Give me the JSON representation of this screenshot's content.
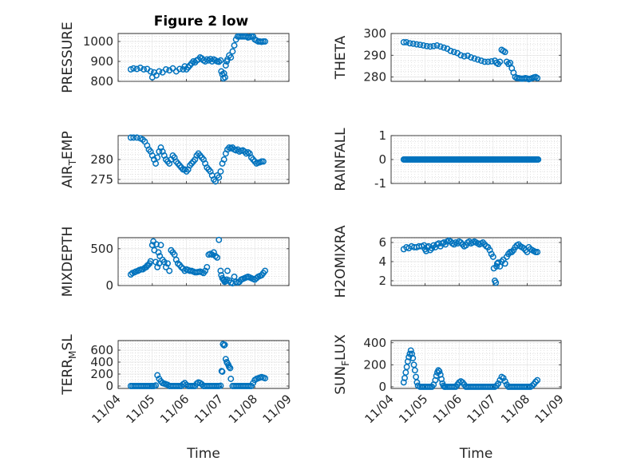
{
  "figure": {
    "title": "Figure 2 low"
  },
  "chart_data": [
    {
      "type": "scatter",
      "title": "Figure 2 low",
      "ylabel": "PRESSURE",
      "xlabel": "",
      "ylim": [
        800,
        1040
      ],
      "yticks": [
        800,
        900,
        1000
      ],
      "ytick_labels": [
        "800",
        "900",
        "1000"
      ],
      "xlim": [
        4,
        9
      ],
      "grid": true,
      "x": [
        4.37,
        4.45,
        4.55,
        4.65,
        4.75,
        4.85,
        4.95,
        5.0,
        5.05,
        5.12,
        5.2,
        5.3,
        5.4,
        5.5,
        5.6,
        5.7,
        5.8,
        5.9,
        5.95,
        6.0,
        6.05,
        6.1,
        6.15,
        6.2,
        6.25,
        6.3,
        6.35,
        6.4,
        6.45,
        6.5,
        6.55,
        6.6,
        6.65,
        6.7,
        6.75,
        6.8,
        6.85,
        6.9,
        6.95,
        7.0,
        7.02,
        7.05,
        7.08,
        7.1,
        7.13,
        7.15,
        7.18,
        7.2,
        7.25,
        7.3,
        7.35,
        7.4,
        7.45,
        7.5,
        7.55,
        7.6,
        7.65,
        7.7,
        7.75,
        7.8,
        7.85,
        7.9,
        7.95,
        8.0,
        8.05,
        8.1,
        8.15,
        8.2,
        8.25,
        8.3
      ],
      "y": [
        860,
        865,
        862,
        868,
        860,
        862,
        850,
        820,
        845,
        830,
        850,
        845,
        860,
        855,
        865,
        850,
        862,
        860,
        875,
        860,
        870,
        880,
        890,
        900,
        895,
        905,
        910,
        920,
        915,
        905,
        900,
        910,
        905,
        912,
        900,
        910,
        905,
        900,
        898,
        905,
        850,
        835,
        815,
        840,
        820,
        880,
        900,
        910,
        930,
        920,
        950,
        980,
        1010,
        1025,
        1025,
        1025,
        1025,
        1025,
        1025,
        1020,
        1022,
        1025,
        1025,
        1010,
        1005,
        1000,
        1000,
        998,
        1000,
        1000
      ]
    },
    {
      "type": "scatter",
      "ylabel": "THETA",
      "xlabel": "",
      "ylim": [
        278,
        300
      ],
      "yticks": [
        280,
        290,
        300
      ],
      "ytick_labels": [
        "280",
        "290",
        "300"
      ],
      "xlim": [
        4,
        9
      ],
      "grid": true,
      "x": [
        4.37,
        4.45,
        4.55,
        4.65,
        4.75,
        4.85,
        4.95,
        5.05,
        5.15,
        5.25,
        5.35,
        5.45,
        5.55,
        5.65,
        5.75,
        5.85,
        5.95,
        6.05,
        6.15,
        6.25,
        6.35,
        6.45,
        6.55,
        6.65,
        6.75,
        6.85,
        6.95,
        7.05,
        7.1,
        7.15,
        7.2,
        7.25,
        7.3,
        7.35,
        7.4,
        7.45,
        7.5,
        7.55,
        7.6,
        7.65,
        7.7,
        7.75,
        7.8,
        7.85,
        7.9,
        7.95,
        8.0,
        8.05,
        8.1,
        8.15,
        8.2,
        8.25,
        8.3
      ],
      "y": [
        296,
        296,
        295.5,
        295.3,
        295,
        294.8,
        294.5,
        294.2,
        294,
        294.2,
        294.5,
        294,
        293.5,
        293,
        292,
        291.5,
        291,
        290,
        289.5,
        289.8,
        289,
        288.5,
        288,
        287.5,
        287,
        287,
        287.2,
        287.5,
        286.5,
        286,
        287,
        292.5,
        292,
        291.5,
        287,
        286,
        286.5,
        284,
        282,
        280,
        279.5,
        279.5,
        279.3,
        279.2,
        279.3,
        279.5,
        279.3,
        279,
        279.2,
        279.5,
        279.8,
        280,
        279.5
      ]
    },
    {
      "type": "scatter",
      "ylabel": "AIR_TEMP",
      "xlabel": "",
      "ylim": [
        274,
        286
      ],
      "yticks": [
        275,
        280
      ],
      "ytick_labels": [
        "275",
        "280"
      ],
      "xlim": [
        4,
        9
      ],
      "grid": true,
      "x": [
        4.37,
        4.45,
        4.55,
        4.65,
        4.72,
        4.78,
        4.85,
        4.9,
        4.95,
        5.0,
        5.05,
        5.1,
        5.15,
        5.2,
        5.25,
        5.3,
        5.35,
        5.4,
        5.45,
        5.5,
        5.55,
        5.6,
        5.65,
        5.7,
        5.75,
        5.8,
        5.85,
        5.9,
        5.95,
        6.0,
        6.05,
        6.1,
        6.15,
        6.2,
        6.25,
        6.3,
        6.35,
        6.4,
        6.45,
        6.5,
        6.55,
        6.6,
        6.65,
        6.7,
        6.75,
        6.8,
        6.85,
        6.9,
        6.95,
        7.0,
        7.05,
        7.1,
        7.15,
        7.2,
        7.25,
        7.3,
        7.35,
        7.4,
        7.45,
        7.5,
        7.55,
        7.6,
        7.65,
        7.7,
        7.75,
        7.8,
        7.85,
        7.9,
        7.95,
        8.0,
        8.05,
        8.1,
        8.15,
        8.2,
        8.25
      ],
      "y": [
        285.5,
        285.5,
        285.5,
        285.3,
        285,
        284.5,
        283.5,
        282.5,
        282,
        281,
        280,
        279,
        280.5,
        282,
        283,
        282,
        281,
        280,
        279.5,
        279,
        280,
        281,
        280.5,
        279.5,
        279,
        278.5,
        278,
        277.5,
        277.5,
        277,
        277.5,
        278.5,
        279,
        279.5,
        280,
        281,
        281.5,
        281,
        280.5,
        280,
        279,
        278,
        277.5,
        277,
        276,
        275,
        274.5,
        276,
        275.5,
        277,
        279,
        280,
        281.5,
        282.5,
        283,
        282.8,
        283,
        282.5,
        282.3,
        282.5,
        282,
        282.2,
        282.3,
        282,
        281.5,
        281.8,
        281.5,
        280.5,
        280,
        279.5,
        279,
        279.2,
        279.3,
        279.5,
        279.5
      ]
    },
    {
      "type": "scatter",
      "ylabel": "RAINFALL",
      "xlabel": "",
      "ylim": [
        -1,
        1
      ],
      "yticks": [
        -1,
        0,
        1
      ],
      "ytick_labels": [
        "-1",
        "0",
        "1"
      ],
      "xlim": [
        4,
        9
      ],
      "grid": true,
      "x_start": 4.37,
      "x_end": 8.33,
      "x_step": 0.035,
      "constant_value": 0
    },
    {
      "type": "scatter",
      "ylabel": "MIXDEPTH",
      "xlabel": "",
      "ylim": [
        0,
        650
      ],
      "yticks": [
        0,
        500
      ],
      "ytick_labels": [
        "0",
        "500"
      ],
      "xlim": [
        4,
        9
      ],
      "grid": true,
      "x": [
        4.37,
        4.42,
        4.48,
        4.52,
        4.58,
        4.62,
        4.68,
        4.72,
        4.78,
        4.82,
        4.85,
        4.88,
        4.92,
        4.95,
        5.0,
        5.03,
        5.06,
        5.1,
        5.12,
        5.15,
        5.18,
        5.2,
        5.22,
        5.25,
        5.3,
        5.35,
        5.4,
        5.45,
        5.5,
        5.55,
        5.6,
        5.65,
        5.7,
        5.75,
        5.8,
        5.85,
        5.9,
        5.95,
        6.0,
        6.05,
        6.1,
        6.15,
        6.2,
        6.25,
        6.3,
        6.35,
        6.4,
        6.45,
        6.5,
        6.55,
        6.6,
        6.65,
        6.7,
        6.75,
        6.8,
        6.85,
        6.9,
        6.95,
        7.0,
        7.02,
        7.05,
        7.08,
        7.1,
        7.12,
        7.15,
        7.18,
        7.2,
        7.25,
        7.3,
        7.35,
        7.4,
        7.45,
        7.5,
        7.55,
        7.6,
        7.65,
        7.7,
        7.75,
        7.8,
        7.85,
        7.9,
        7.95,
        8.0,
        8.05,
        8.1,
        8.15,
        8.2,
        8.25,
        8.3
      ],
      "y": [
        150,
        170,
        180,
        190,
        200,
        210,
        220,
        220,
        240,
        250,
        270,
        280,
        300,
        330,
        550,
        600,
        480,
        320,
        560,
        250,
        450,
        300,
        400,
        550,
        350,
        320,
        250,
        300,
        200,
        480,
        450,
        420,
        350,
        300,
        280,
        250,
        230,
        200,
        220,
        210,
        200,
        200,
        190,
        180,
        180,
        185,
        190,
        180,
        170,
        200,
        250,
        420,
        430,
        420,
        450,
        400,
        380,
        620,
        200,
        140,
        100,
        80,
        70,
        50,
        60,
        80,
        200,
        70,
        40,
        30,
        120,
        50,
        40,
        50,
        80,
        90,
        100,
        110,
        120,
        110,
        100,
        90,
        80,
        100,
        120,
        130,
        140,
        170,
        200
      ]
    },
    {
      "type": "scatter",
      "ylabel": "H2OMIXRA",
      "xlabel": "",
      "ylim": [
        1.5,
        6.5
      ],
      "yticks": [
        2,
        4,
        6
      ],
      "ytick_labels": [
        "2",
        "4",
        "6"
      ],
      "xlim": [
        4,
        9
      ],
      "grid": true,
      "x": [
        4.37,
        4.45,
        4.52,
        4.6,
        4.68,
        4.75,
        4.82,
        4.9,
        4.97,
        5.0,
        5.03,
        5.06,
        5.1,
        5.15,
        5.2,
        5.25,
        5.3,
        5.35,
        5.4,
        5.45,
        5.5,
        5.55,
        5.6,
        5.65,
        5.7,
        5.75,
        5.8,
        5.85,
        5.9,
        5.95,
        6.0,
        6.05,
        6.1,
        6.15,
        6.2,
        6.25,
        6.3,
        6.35,
        6.4,
        6.45,
        6.5,
        6.55,
        6.6,
        6.65,
        6.7,
        6.75,
        6.8,
        6.85,
        6.9,
        6.95,
        7.0,
        7.02,
        7.05,
        7.08,
        7.1,
        7.12,
        7.15,
        7.2,
        7.25,
        7.3,
        7.35,
        7.4,
        7.45,
        7.5,
        7.55,
        7.6,
        7.65,
        7.7,
        7.75,
        7.8,
        7.85,
        7.9,
        7.95,
        8.0,
        8.05,
        8.1,
        8.15,
        8.2,
        8.25,
        8.3
      ],
      "y": [
        5.3,
        5.5,
        5.4,
        5.6,
        5.5,
        5.5,
        5.6,
        5.6,
        5.7,
        5.3,
        5.1,
        5.5,
        5.6,
        5.2,
        5.4,
        5.7,
        5.5,
        5.8,
        5.9,
        5.6,
        5.9,
        6.0,
        5.8,
        6.1,
        6.2,
        6.1,
        5.9,
        5.8,
        6.0,
        5.9,
        6.1,
        6.0,
        5.8,
        5.6,
        5.7,
        6.0,
        6.1,
        5.9,
        6.0,
        6.1,
        6.0,
        5.9,
        5.8,
        5.9,
        6.0,
        5.8,
        5.6,
        5.5,
        5.2,
        4.8,
        4.5,
        3.3,
        2.0,
        1.8,
        3.5,
        3.8,
        3.9,
        3.5,
        4.0,
        4.2,
        3.8,
        4.5,
        4.8,
        5.0,
        5.0,
        5.2,
        5.5,
        5.7,
        5.8,
        5.6,
        5.5,
        5.4,
        5.2,
        5.0,
        5.5,
        5.3,
        5.2,
        5.1,
        5.0,
        5.0
      ]
    },
    {
      "type": "scatter",
      "ylabel": "TERR_MSL",
      "xlabel": "Time",
      "ylim": [
        -40,
        760
      ],
      "yticks": [
        0,
        200,
        400,
        600
      ],
      "ytick_labels": [
        "0",
        "200",
        "400",
        "600"
      ],
      "xlim": [
        4,
        9
      ],
      "xticks": [
        4,
        5,
        6,
        7,
        8,
        9
      ],
      "xtick_labels": [
        "11/04",
        "11/05",
        "11/06",
        "11/07",
        "11/08",
        "11/09"
      ],
      "grid": true,
      "x": [
        4.37,
        4.42,
        4.47,
        4.52,
        4.57,
        4.62,
        4.67,
        4.72,
        4.77,
        4.82,
        4.87,
        4.92,
        4.97,
        5.0,
        5.05,
        5.1,
        5.15,
        5.2,
        5.25,
        5.3,
        5.35,
        5.4,
        5.45,
        5.5,
        5.55,
        5.6,
        5.65,
        5.7,
        5.75,
        5.8,
        5.85,
        5.9,
        5.95,
        6.0,
        6.05,
        6.1,
        6.15,
        6.2,
        6.25,
        6.3,
        6.35,
        6.4,
        6.45,
        6.5,
        6.55,
        6.6,
        6.65,
        6.7,
        6.75,
        6.8,
        6.85,
        6.9,
        6.95,
        7.0,
        7.03,
        7.05,
        7.07,
        7.1,
        7.12,
        7.15,
        7.18,
        7.2,
        7.23,
        7.25,
        7.28,
        7.3,
        7.35,
        7.4,
        7.45,
        7.5,
        7.55,
        7.6,
        7.65,
        7.7,
        7.75,
        7.8,
        7.85,
        7.9,
        7.95,
        8.0,
        8.05,
        8.1,
        8.15,
        8.2,
        8.25,
        8.3
      ],
      "y": [
        0,
        0,
        0,
        0,
        0,
        0,
        0,
        0,
        0,
        0,
        0,
        0,
        0,
        0,
        0,
        10,
        180,
        120,
        80,
        50,
        40,
        30,
        20,
        0,
        0,
        0,
        0,
        0,
        0,
        0,
        0,
        30,
        50,
        20,
        0,
        0,
        0,
        0,
        0,
        40,
        60,
        50,
        30,
        0,
        0,
        0,
        0,
        0,
        0,
        0,
        0,
        0,
        0,
        5,
        250,
        240,
        700,
        680,
        690,
        450,
        400,
        380,
        350,
        320,
        300,
        120,
        0,
        0,
        0,
        0,
        0,
        0,
        0,
        0,
        0,
        0,
        0,
        0,
        50,
        100,
        120,
        130,
        140,
        150,
        140,
        130
      ]
    },
    {
      "type": "scatter",
      "ylabel": "SUN_FLUX",
      "xlabel": "Time",
      "ylim": [
        -15,
        420
      ],
      "yticks": [
        0,
        200,
        400
      ],
      "ytick_labels": [
        "0",
        "200",
        "400"
      ],
      "xlim": [
        4,
        9
      ],
      "xticks": [
        4,
        5,
        6,
        7,
        8,
        9
      ],
      "xtick_labels": [
        "11/04",
        "11/05",
        "11/06",
        "11/07",
        "11/08",
        "11/09"
      ],
      "grid": true,
      "x": [
        4.37,
        4.4,
        4.43,
        4.46,
        4.49,
        4.52,
        4.55,
        4.58,
        4.61,
        4.64,
        4.67,
        4.7,
        4.73,
        4.76,
        4.79,
        4.85,
        4.9,
        4.95,
        5.0,
        5.05,
        5.1,
        5.15,
        5.2,
        5.25,
        5.3,
        5.33,
        5.36,
        5.39,
        5.42,
        5.45,
        5.48,
        5.51,
        5.54,
        5.57,
        5.6,
        5.65,
        5.7,
        5.75,
        5.8,
        5.85,
        5.9,
        5.95,
        6.0,
        6.05,
        6.1,
        6.15,
        6.2,
        6.25,
        6.3,
        6.35,
        6.4,
        6.45,
        6.5,
        6.55,
        6.6,
        6.65,
        6.7,
        6.75,
        6.8,
        6.85,
        6.9,
        6.95,
        7.0,
        7.05,
        7.1,
        7.15,
        7.2,
        7.25,
        7.3,
        7.35,
        7.4,
        7.45,
        7.5,
        7.55,
        7.6,
        7.65,
        7.7,
        7.75,
        7.8,
        7.85,
        7.9,
        7.95,
        8.0,
        8.05,
        8.1,
        8.15,
        8.2,
        8.25,
        8.3
      ],
      "y": [
        40,
        80,
        130,
        180,
        230,
        270,
        300,
        330,
        300,
        260,
        200,
        150,
        90,
        40,
        10,
        0,
        0,
        0,
        0,
        0,
        0,
        0,
        0,
        20,
        60,
        100,
        130,
        150,
        140,
        110,
        70,
        30,
        10,
        0,
        0,
        0,
        0,
        0,
        0,
        0,
        0,
        20,
        40,
        50,
        40,
        20,
        0,
        0,
        0,
        0,
        0,
        0,
        0,
        0,
        0,
        0,
        0,
        0,
        0,
        0,
        0,
        0,
        0,
        0,
        10,
        30,
        60,
        90,
        80,
        50,
        20,
        0,
        0,
        0,
        0,
        0,
        0,
        0,
        0,
        0,
        0,
        0,
        0,
        0,
        0,
        10,
        25,
        45,
        60
      ]
    }
  ]
}
